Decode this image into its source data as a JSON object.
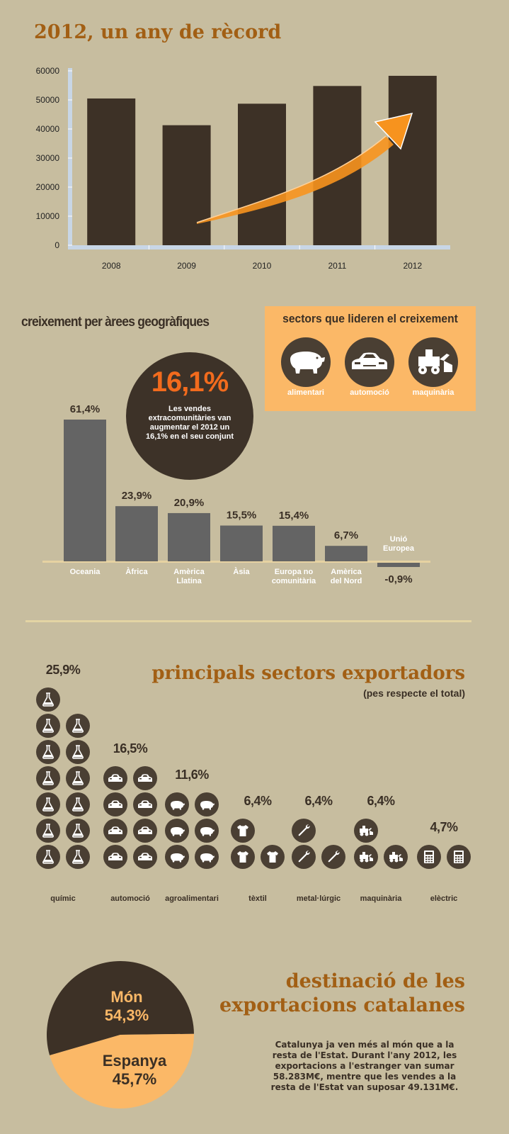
{
  "title": "2012, un any de rècord",
  "chart_data": [
    {
      "type": "bar",
      "categories": [
        "2008",
        "2009",
        "2010",
        "2011",
        "2012"
      ],
      "values": [
        50500,
        41300,
        48700,
        54800,
        58300
      ],
      "ylim": [
        0,
        60000
      ],
      "yticks": [
        "0",
        "10000",
        "20000",
        "30000",
        "40000",
        "50000",
        "60000"
      ],
      "bar_color": "#3d3126",
      "accent": "#f7931e"
    },
    {
      "type": "bar",
      "title": "creixement per àrees geogràfiques",
      "categories": [
        "Oceania",
        "Àfrica",
        "Amèrica Llatina",
        "Àsia",
        "Europa no comunitària",
        "Amèrica del Nord",
        "Unió Europea"
      ],
      "values": [
        61.4,
        23.9,
        20.9,
        15.5,
        15.4,
        6.7,
        -0.9
      ],
      "labels": [
        "61,4%",
        "23,9%",
        "20,9%",
        "15,5%",
        "15,4%",
        "6,7%",
        "-0,9%"
      ],
      "bar_color": "#646464"
    },
    {
      "type": "bar",
      "title": "principals sectors exportadors",
      "subtitle": "(pes respecte el total)",
      "categories": [
        "químic",
        "automoció",
        "agroalimentari",
        "tèxtil",
        "metal·lúrgic",
        "maquinària",
        "elèctric"
      ],
      "values": [
        25.9,
        16.5,
        11.6,
        6.4,
        6.4,
        6.4,
        4.7
      ],
      "labels": [
        "25,9%",
        "16,5%",
        "11,6%",
        "6,4%",
        "6,4%",
        "6,4%",
        "4,7%"
      ],
      "icons": [
        "flask-icon",
        "car-icon",
        "pig-icon",
        "shirt-icon",
        "wrench-icon",
        "bulldozer-icon",
        "calculator-icon"
      ],
      "icon_counts": [
        13,
        8,
        6,
        3,
        3,
        3,
        2
      ]
    },
    {
      "type": "pie",
      "title": "destinació de les exportacions catalanes",
      "categories": [
        "Món",
        "Espanya"
      ],
      "values": [
        54.3,
        45.7
      ],
      "labels": [
        "54,3%",
        "45,7%"
      ],
      "colors": [
        "#3d3126",
        "#fbb867"
      ]
    }
  ],
  "growth": {
    "title": "creixement per àrees geogràfiques",
    "highlight_value": "16,1%",
    "highlight_text": "Les vendes extracomunitàries van augmentar el 2012 un 16,1% en el seu conjunt",
    "categories": [
      {
        "line1": "Oceania",
        "line2": ""
      },
      {
        "line1": "Àfrica",
        "line2": ""
      },
      {
        "line1": "Amèrica",
        "line2": "Llatina"
      },
      {
        "line1": "Àsia",
        "line2": ""
      },
      {
        "line1": "Europa no",
        "line2": "comunitària"
      },
      {
        "line1": "Amèrica",
        "line2": "del Nord"
      },
      {
        "line1": "Unió",
        "line2": "Europea"
      }
    ]
  },
  "leading_sectors": {
    "title": "sectors que lideren el creixement",
    "items": [
      {
        "label": "alimentari",
        "icon": "pig-icon"
      },
      {
        "label": "automoció",
        "icon": "car-icon"
      },
      {
        "label": "maquinària",
        "icon": "bulldozer-icon"
      }
    ]
  },
  "export_sectors": {
    "title": "principals sectors exportadors",
    "subtitle": "(pes respecte el total)"
  },
  "destination": {
    "title_line1": "destinació de les",
    "title_line2": "exportacions catalanes",
    "world_label": "Món",
    "world_value": "54,3%",
    "spain_label": "Espanya",
    "spain_value": "45,7%",
    "text": "Catalunya ja ven més al món que a la resta de l'Estat. Durant l'any 2012, les exportacions a l'estranger van sumar 58.283M€, mentre que les vendes a la resta de l'Estat van suposar 49.131M€."
  },
  "colors": {
    "background": "#c7bd9f",
    "dark": "#3d3126",
    "orange_text": "#a25f14",
    "orange_fill": "#fbb867",
    "highlight": "#f26b1d",
    "gray_bar": "#646464"
  }
}
